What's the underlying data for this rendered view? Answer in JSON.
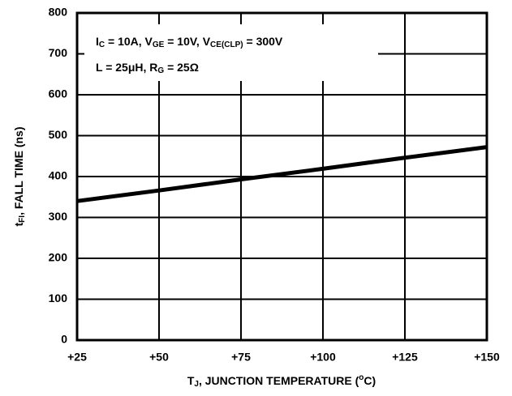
{
  "chart_data": {
    "type": "line",
    "xlabel": [
      "T",
      {
        "text": "J",
        "script": "sub"
      },
      ", JUNCTION TEMPERATURE (",
      {
        "text": "o",
        "script": "sup"
      },
      "C)"
    ],
    "ylabel": [
      "t",
      {
        "text": "FI",
        "script": "sub"
      },
      ", FALL TIME (ns)"
    ],
    "annotations": [
      [
        "I",
        {
          "text": "C",
          "script": "sub"
        },
        " = 10A, V",
        {
          "text": "GE",
          "script": "sub"
        },
        " = 10V, V",
        {
          "text": "CE(CLP)",
          "script": "sub"
        },
        " = 300V"
      ],
      [
        "L = 25μH, R",
        {
          "text": "G",
          "script": "sub"
        },
        " = 25Ω"
      ]
    ],
    "x": [
      25,
      50,
      75,
      100,
      125,
      150
    ],
    "series": [
      {
        "color": "#000000",
        "values": [
          340,
          366,
          393,
          419,
          446,
          472
        ]
      }
    ],
    "xlim": [
      25,
      150
    ],
    "xticks": [
      {
        "value": 25,
        "label": "+25"
      },
      {
        "value": 50,
        "label": "+50"
      },
      {
        "value": 75,
        "label": "+75"
      },
      {
        "value": 100,
        "label": "+100"
      },
      {
        "value": 125,
        "label": "+125"
      },
      {
        "value": 150,
        "label": "+150"
      }
    ],
    "ylim": [
      0,
      800
    ],
    "yticks": [
      0,
      100,
      200,
      300,
      400,
      500,
      600,
      700,
      800
    ],
    "grid": true
  }
}
